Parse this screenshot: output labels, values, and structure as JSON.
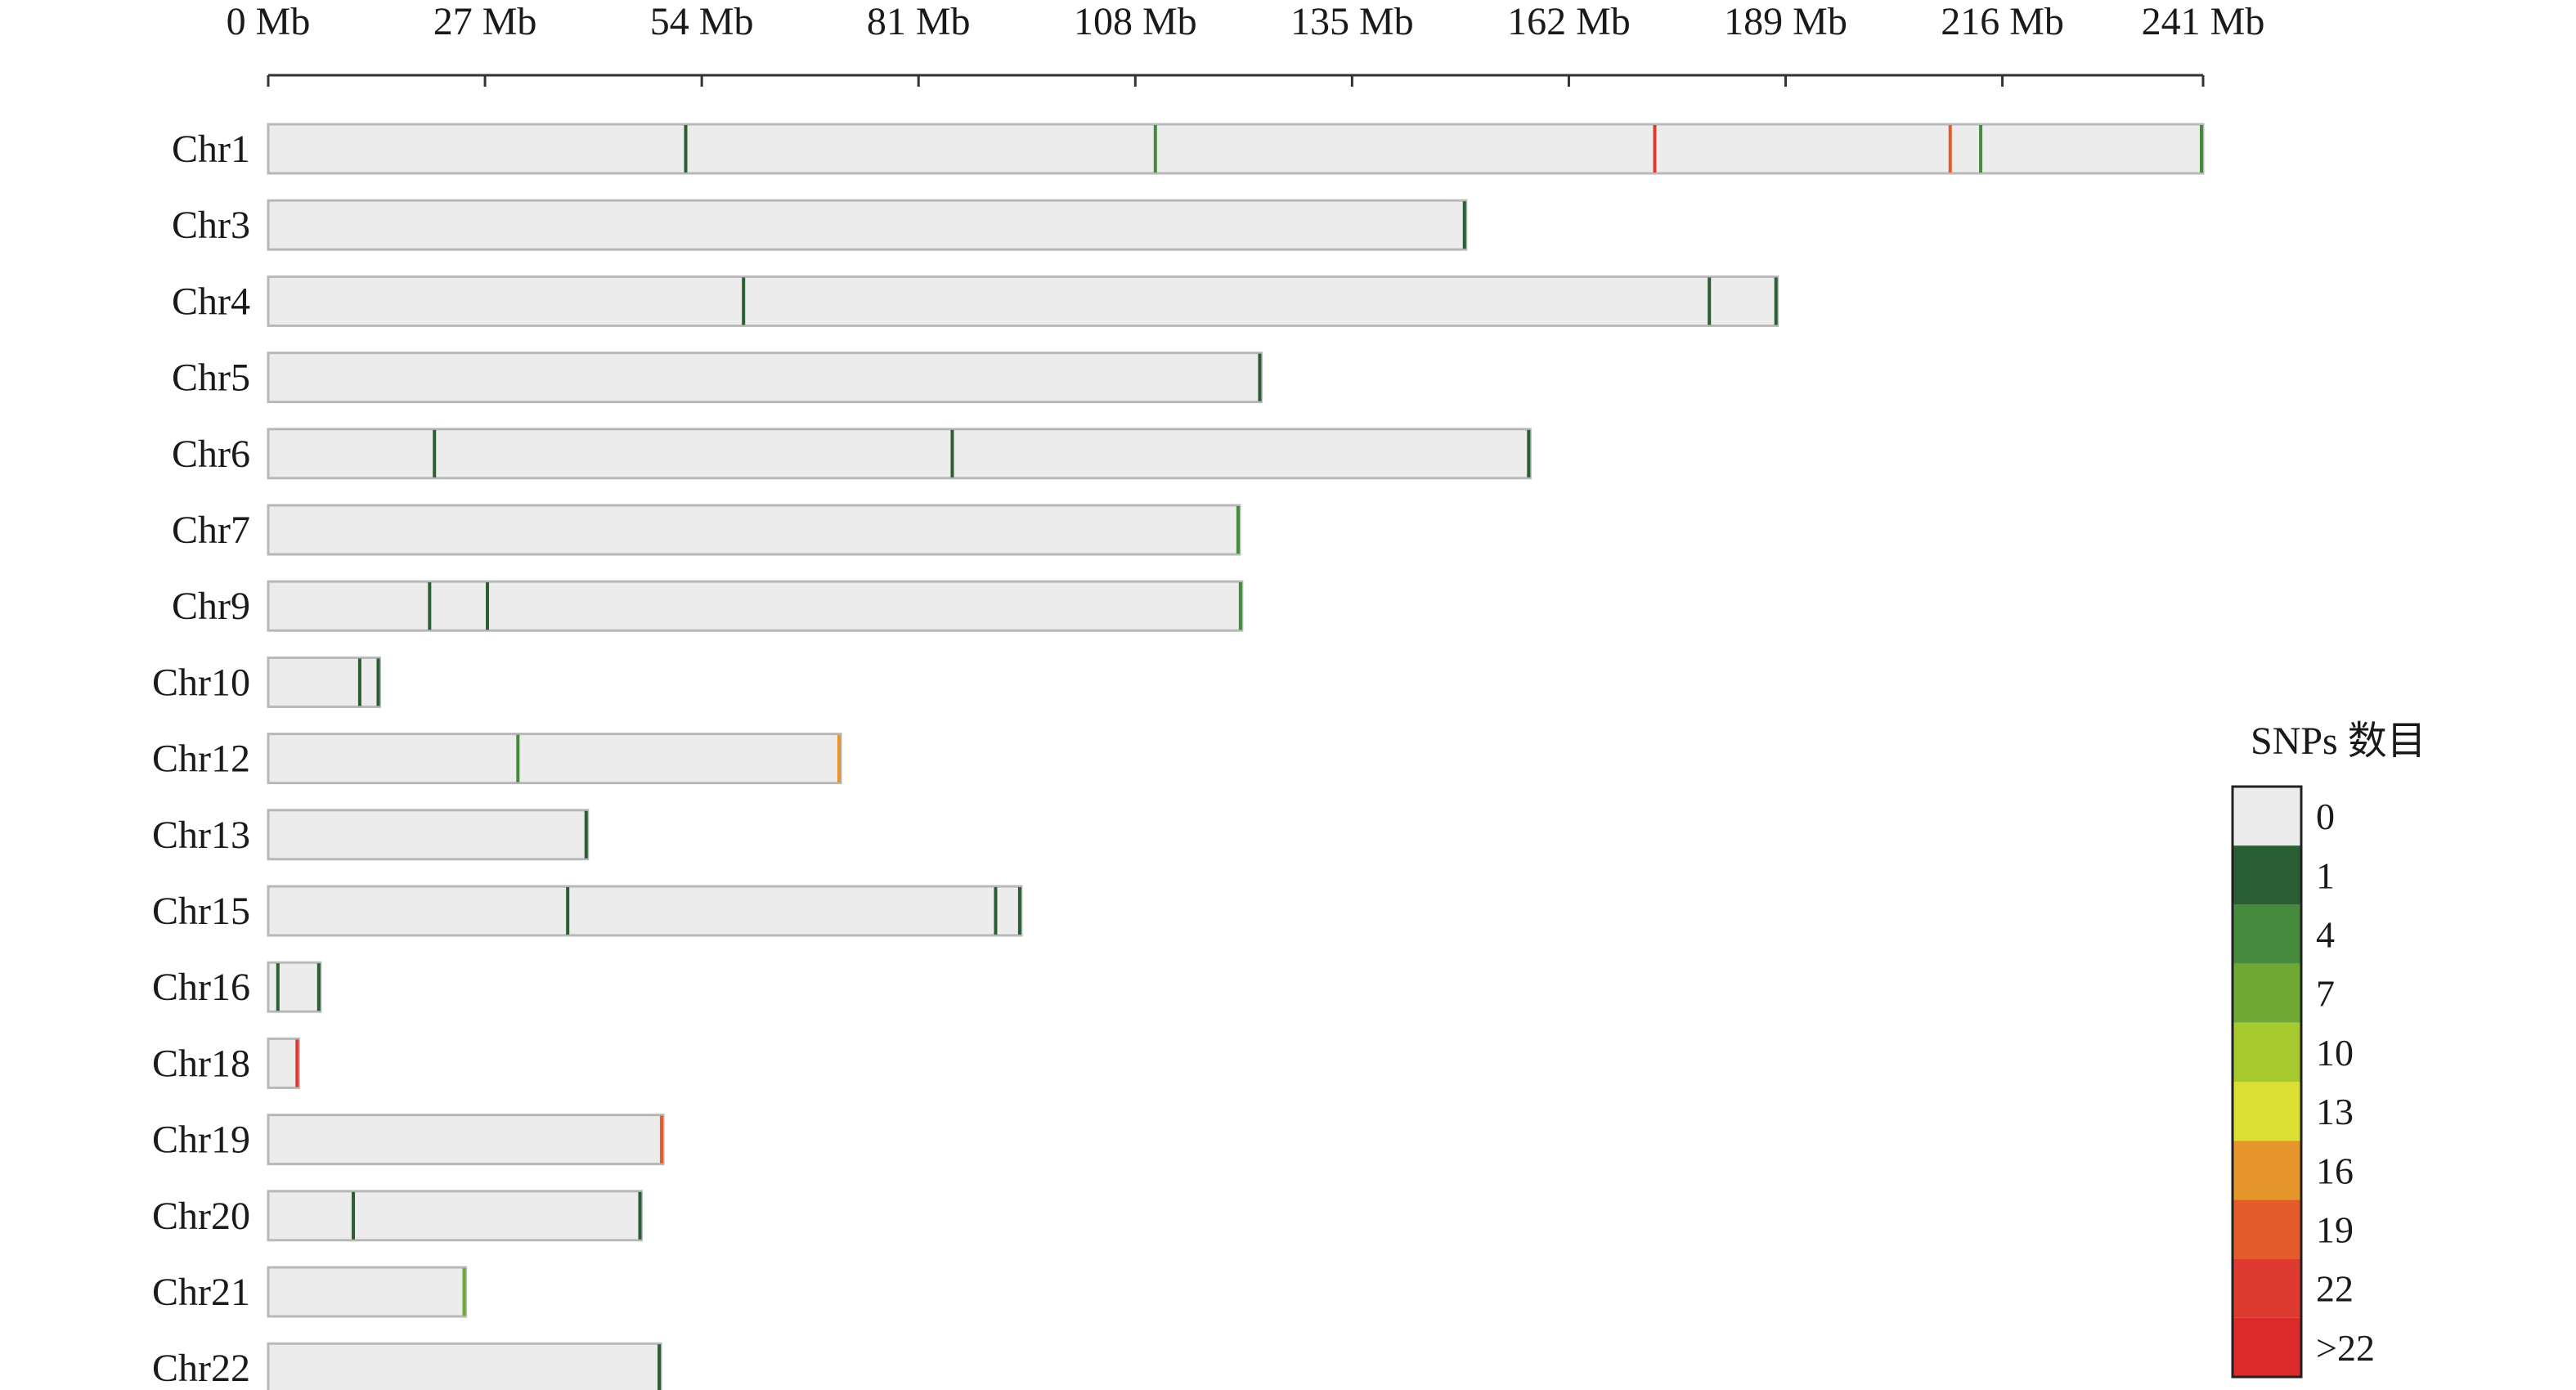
{
  "chart_data": {
    "type": "heatmap",
    "title": "",
    "axis": {
      "unit": "Mb",
      "xlim": [
        0,
        241
      ],
      "ticks": [
        {
          "value": 0,
          "label": "0 Mb"
        },
        {
          "value": 27,
          "label": "27 Mb"
        },
        {
          "value": 54,
          "label": "54 Mb"
        },
        {
          "value": 81,
          "label": "81 Mb"
        },
        {
          "value": 108,
          "label": "108 Mb"
        },
        {
          "value": 135,
          "label": "135 Mb"
        },
        {
          "value": 162,
          "label": "162 Mb"
        },
        {
          "value": 189,
          "label": "189 Mb"
        },
        {
          "value": 216,
          "label": "216 Mb"
        },
        {
          "value": 241,
          "label": "241 Mb"
        }
      ]
    },
    "chromosomes": [
      {
        "name": "Chr1",
        "length": 241,
        "snps": [
          {
            "pos": 52,
            "bin": 1
          },
          {
            "pos": 110.5,
            "bin": 4
          },
          {
            "pos": 172.7,
            "bin": 22
          },
          {
            "pos": 209.5,
            "bin": 19
          },
          {
            "pos": 213.3,
            "bin": 4
          },
          {
            "pos": 241,
            "bin": 4
          }
        ]
      },
      {
        "name": "Chr3",
        "length": 149.2,
        "snps": [
          {
            "pos": 149.2,
            "bin": 1
          }
        ]
      },
      {
        "name": "Chr4",
        "length": 188,
        "snps": [
          {
            "pos": 59.2,
            "bin": 1
          },
          {
            "pos": 179.5,
            "bin": 1
          },
          {
            "pos": 188,
            "bin": 1
          }
        ]
      },
      {
        "name": "Chr5",
        "length": 123.7,
        "snps": [
          {
            "pos": 123.7,
            "bin": 1
          }
        ]
      },
      {
        "name": "Chr6",
        "length": 157.2,
        "snps": [
          {
            "pos": 20.7,
            "bin": 1
          },
          {
            "pos": 85.2,
            "bin": 1
          },
          {
            "pos": 157.2,
            "bin": 1
          }
        ]
      },
      {
        "name": "Chr7",
        "length": 121,
        "snps": [
          {
            "pos": 121,
            "bin": 4
          }
        ]
      },
      {
        "name": "Chr9",
        "length": 121.3,
        "snps": [
          {
            "pos": 20.1,
            "bin": 1
          },
          {
            "pos": 27.3,
            "bin": 1
          },
          {
            "pos": 121.3,
            "bin": 4
          }
        ]
      },
      {
        "name": "Chr10",
        "length": 13.9,
        "snps": [
          {
            "pos": 11.4,
            "bin": 1
          },
          {
            "pos": 13.9,
            "bin": 1
          }
        ]
      },
      {
        "name": "Chr12",
        "length": 71.3,
        "snps": [
          {
            "pos": 31.1,
            "bin": 4
          },
          {
            "pos": 71.3,
            "bin": 16
          }
        ]
      },
      {
        "name": "Chr13",
        "length": 39.8,
        "snps": [
          {
            "pos": 39.8,
            "bin": 1
          }
        ]
      },
      {
        "name": "Chr15",
        "length": 93.8,
        "snps": [
          {
            "pos": 37.3,
            "bin": 1
          },
          {
            "pos": 90.6,
            "bin": 1
          },
          {
            "pos": 93.8,
            "bin": 1
          }
        ]
      },
      {
        "name": "Chr16",
        "length": 6.5,
        "snps": [
          {
            "pos": 1.2,
            "bin": 1
          },
          {
            "pos": 6.5,
            "bin": 1
          }
        ]
      },
      {
        "name": "Chr18",
        "length": 3.8,
        "snps": [
          {
            "pos": 3.8,
            "bin": 22
          }
        ]
      },
      {
        "name": "Chr19",
        "length": 49.2,
        "snps": [
          {
            "pos": 49.2,
            "bin": 19
          }
        ]
      },
      {
        "name": "Chr20",
        "length": 46.5,
        "snps": [
          {
            "pos": 10.6,
            "bin": 1
          },
          {
            "pos": 46.5,
            "bin": 1
          }
        ]
      },
      {
        "name": "Chr21",
        "length": 24.6,
        "snps": [
          {
            "pos": 24.6,
            "bin": 7
          }
        ]
      },
      {
        "name": "Chr22",
        "length": 48.9,
        "snps": [
          {
            "pos": 48.9,
            "bin": 1
          }
        ]
      }
    ],
    "legend": {
      "title": "SNPs 数目",
      "placement": "right",
      "entries": [
        {
          "label": "0",
          "color": "#ececec"
        },
        {
          "label": "1",
          "color": "#2b5e34"
        },
        {
          "label": "4",
          "color": "#468a3e"
        },
        {
          "label": "7",
          "color": "#6fa933"
        },
        {
          "label": "10",
          "color": "#a7cb2e"
        },
        {
          "label": "13",
          "color": "#dde033"
        },
        {
          "label": "16",
          "color": "#e6952b"
        },
        {
          "label": "19",
          "color": "#e55c2b"
        },
        {
          "label": "22",
          "color": "#df3a2f"
        },
        {
          "label": ">22",
          "color": "#dc2a2a"
        }
      ]
    },
    "bar_fill": "#ececec",
    "bar_stroke": "#b8b8b8"
  }
}
